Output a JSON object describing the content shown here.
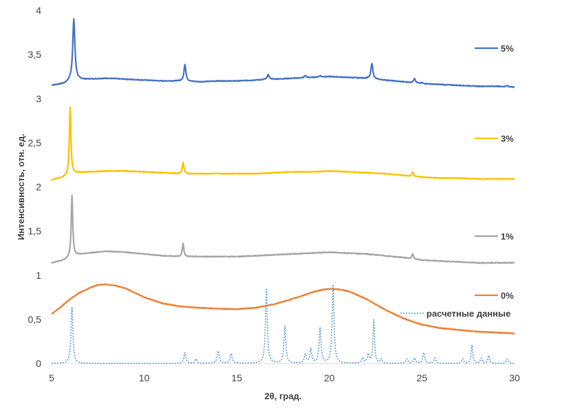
{
  "chart_data": {
    "type": "line",
    "xlabel": "2θ, град.",
    "ylabel": "Интенсивность, отн. ед.",
    "xlim": [
      5,
      30
    ],
    "ylim": [
      0,
      4
    ],
    "x_ticks": [
      5,
      10,
      15,
      20,
      25,
      30
    ],
    "y_ticks": [
      0,
      0.5,
      1,
      1.5,
      2,
      2.5,
      3,
      3.5,
      4
    ],
    "x_tick_labels": [
      "5",
      "10",
      "15",
      "20",
      "25",
      "30"
    ],
    "y_tick_labels": [
      "0",
      "0,5",
      "1",
      "1,5",
      "2",
      "2,5",
      "3",
      "3,5",
      "4"
    ],
    "grid": false,
    "legend_position": "right",
    "series": [
      {
        "name": "5%",
        "color": "#4472C4",
        "style": "solid",
        "baseline": [
          [
            5,
            3.15
          ],
          [
            5.7,
            3.17
          ],
          [
            6.0,
            3.2
          ],
          [
            6.4,
            3.21
          ],
          [
            7,
            3.22
          ],
          [
            8,
            3.23
          ],
          [
            9,
            3.22
          ],
          [
            10,
            3.21
          ],
          [
            11,
            3.2
          ],
          [
            12,
            3.2
          ],
          [
            13,
            3.19
          ],
          [
            14,
            3.2
          ],
          [
            15,
            3.2
          ],
          [
            16,
            3.21
          ],
          [
            17,
            3.22
          ],
          [
            18,
            3.23
          ],
          [
            19,
            3.24
          ],
          [
            20,
            3.25
          ],
          [
            21,
            3.24
          ],
          [
            22,
            3.23
          ],
          [
            23,
            3.21
          ],
          [
            24,
            3.19
          ],
          [
            25,
            3.17
          ],
          [
            26,
            3.16
          ],
          [
            27,
            3.15
          ],
          [
            28,
            3.14
          ],
          [
            29,
            3.14
          ],
          [
            30,
            3.13
          ]
        ],
        "peaks": [
          [
            6.2,
            3.9,
            0.07
          ],
          [
            12.2,
            3.39,
            0.06
          ],
          [
            16.7,
            3.27,
            0.07
          ],
          [
            18.7,
            3.26,
            0.06
          ],
          [
            19.5,
            3.26,
            0.06
          ],
          [
            22.3,
            3.4,
            0.06
          ],
          [
            24.6,
            3.23,
            0.06
          ],
          [
            25.0,
            3.18,
            0.05
          ],
          [
            29.6,
            3.15,
            0.05
          ]
        ]
      },
      {
        "name": "3%",
        "color": "#FFC000",
        "style": "solid",
        "baseline": [
          [
            5,
            2.08
          ],
          [
            5.7,
            2.11
          ],
          [
            6.0,
            2.14
          ],
          [
            6.4,
            2.16
          ],
          [
            7,
            2.17
          ],
          [
            8,
            2.18
          ],
          [
            9,
            2.18
          ],
          [
            10,
            2.17
          ],
          [
            11,
            2.16
          ],
          [
            12,
            2.15
          ],
          [
            13,
            2.15
          ],
          [
            14,
            2.15
          ],
          [
            15,
            2.15
          ],
          [
            16,
            2.15
          ],
          [
            17,
            2.16
          ],
          [
            18,
            2.17
          ],
          [
            19,
            2.17
          ],
          [
            20,
            2.18
          ],
          [
            21,
            2.17
          ],
          [
            22,
            2.16
          ],
          [
            23,
            2.15
          ],
          [
            24,
            2.13
          ],
          [
            25,
            2.11
          ],
          [
            26,
            2.1
          ],
          [
            27,
            2.1
          ],
          [
            28,
            2.09
          ],
          [
            29,
            2.09
          ],
          [
            30,
            2.09
          ]
        ],
        "peaks": [
          [
            6.0,
            2.9,
            0.05
          ],
          [
            12.1,
            2.28,
            0.05
          ],
          [
            24.5,
            2.17,
            0.05
          ]
        ]
      },
      {
        "name": "1%",
        "color": "#A5A5A5",
        "style": "solid",
        "baseline": [
          [
            5,
            1.14
          ],
          [
            5.7,
            1.17
          ],
          [
            6.0,
            1.2
          ],
          [
            6.4,
            1.23
          ],
          [
            7,
            1.25
          ],
          [
            8,
            1.27
          ],
          [
            9,
            1.26
          ],
          [
            10,
            1.24
          ],
          [
            11,
            1.22
          ],
          [
            12,
            1.21
          ],
          [
            13,
            1.21
          ],
          [
            14,
            1.21
          ],
          [
            15,
            1.21
          ],
          [
            16,
            1.22
          ],
          [
            17,
            1.23
          ],
          [
            18,
            1.24
          ],
          [
            19,
            1.25
          ],
          [
            20,
            1.26
          ],
          [
            21,
            1.25
          ],
          [
            22,
            1.24
          ],
          [
            23,
            1.22
          ],
          [
            24,
            1.2
          ],
          [
            25,
            1.17
          ],
          [
            26,
            1.16
          ],
          [
            27,
            1.15
          ],
          [
            28,
            1.14
          ],
          [
            29,
            1.14
          ],
          [
            30,
            1.14
          ]
        ],
        "peaks": [
          [
            6.1,
            1.9,
            0.05
          ],
          [
            12.1,
            1.36,
            0.05
          ],
          [
            24.5,
            1.24,
            0.05
          ]
        ]
      },
      {
        "name": "0%",
        "color": "#ED7D31",
        "style": "solid",
        "baseline": [
          [
            5,
            0.56
          ],
          [
            5.5,
            0.64
          ],
          [
            6,
            0.73
          ],
          [
            6.5,
            0.8
          ],
          [
            7,
            0.85
          ],
          [
            7.5,
            0.89
          ],
          [
            8,
            0.895
          ],
          [
            8.5,
            0.88
          ],
          [
            9,
            0.85
          ],
          [
            9.5,
            0.8
          ],
          [
            10,
            0.75
          ],
          [
            11,
            0.68
          ],
          [
            12,
            0.645
          ],
          [
            13,
            0.63
          ],
          [
            14,
            0.62
          ],
          [
            15,
            0.615
          ],
          [
            16,
            0.63
          ],
          [
            17,
            0.67
          ],
          [
            18,
            0.73
          ],
          [
            19,
            0.8
          ],
          [
            19.5,
            0.83
          ],
          [
            20,
            0.845
          ],
          [
            20.5,
            0.84
          ],
          [
            21,
            0.82
          ],
          [
            22,
            0.73
          ],
          [
            23,
            0.61
          ],
          [
            24,
            0.51
          ],
          [
            25,
            0.44
          ],
          [
            26,
            0.4
          ],
          [
            27,
            0.38
          ],
          [
            28,
            0.36
          ],
          [
            29,
            0.35
          ],
          [
            30,
            0.34
          ]
        ],
        "peaks": []
      },
      {
        "name": "расчетные данные",
        "color": "#5B9BD5",
        "style": "dotted",
        "baseline": [
          [
            5,
            0
          ],
          [
            30,
            0
          ]
        ],
        "peaks": [
          [
            6.1,
            0.64,
            0.06
          ],
          [
            12.2,
            0.12,
            0.06
          ],
          [
            12.8,
            0.05,
            0.06
          ],
          [
            14.0,
            0.14,
            0.07
          ],
          [
            14.7,
            0.11,
            0.06
          ],
          [
            16.6,
            0.84,
            0.06
          ],
          [
            17.6,
            0.42,
            0.06
          ],
          [
            18.7,
            0.1,
            0.06
          ],
          [
            19.0,
            0.16,
            0.06
          ],
          [
            19.5,
            0.4,
            0.06
          ],
          [
            20.2,
            0.88,
            0.06
          ],
          [
            21.8,
            0.06,
            0.06
          ],
          [
            22.1,
            0.1,
            0.06
          ],
          [
            22.4,
            0.49,
            0.05
          ],
          [
            22.8,
            0.05,
            0.05
          ],
          [
            24.2,
            0.05,
            0.06
          ],
          [
            24.6,
            0.06,
            0.06
          ],
          [
            25.1,
            0.12,
            0.06
          ],
          [
            25.7,
            0.06,
            0.06
          ],
          [
            27.2,
            0.05,
            0.06
          ],
          [
            27.7,
            0.21,
            0.05
          ],
          [
            28.2,
            0.06,
            0.05
          ],
          [
            28.6,
            0.09,
            0.05
          ],
          [
            29.6,
            0.05,
            0.06
          ]
        ]
      }
    ]
  }
}
